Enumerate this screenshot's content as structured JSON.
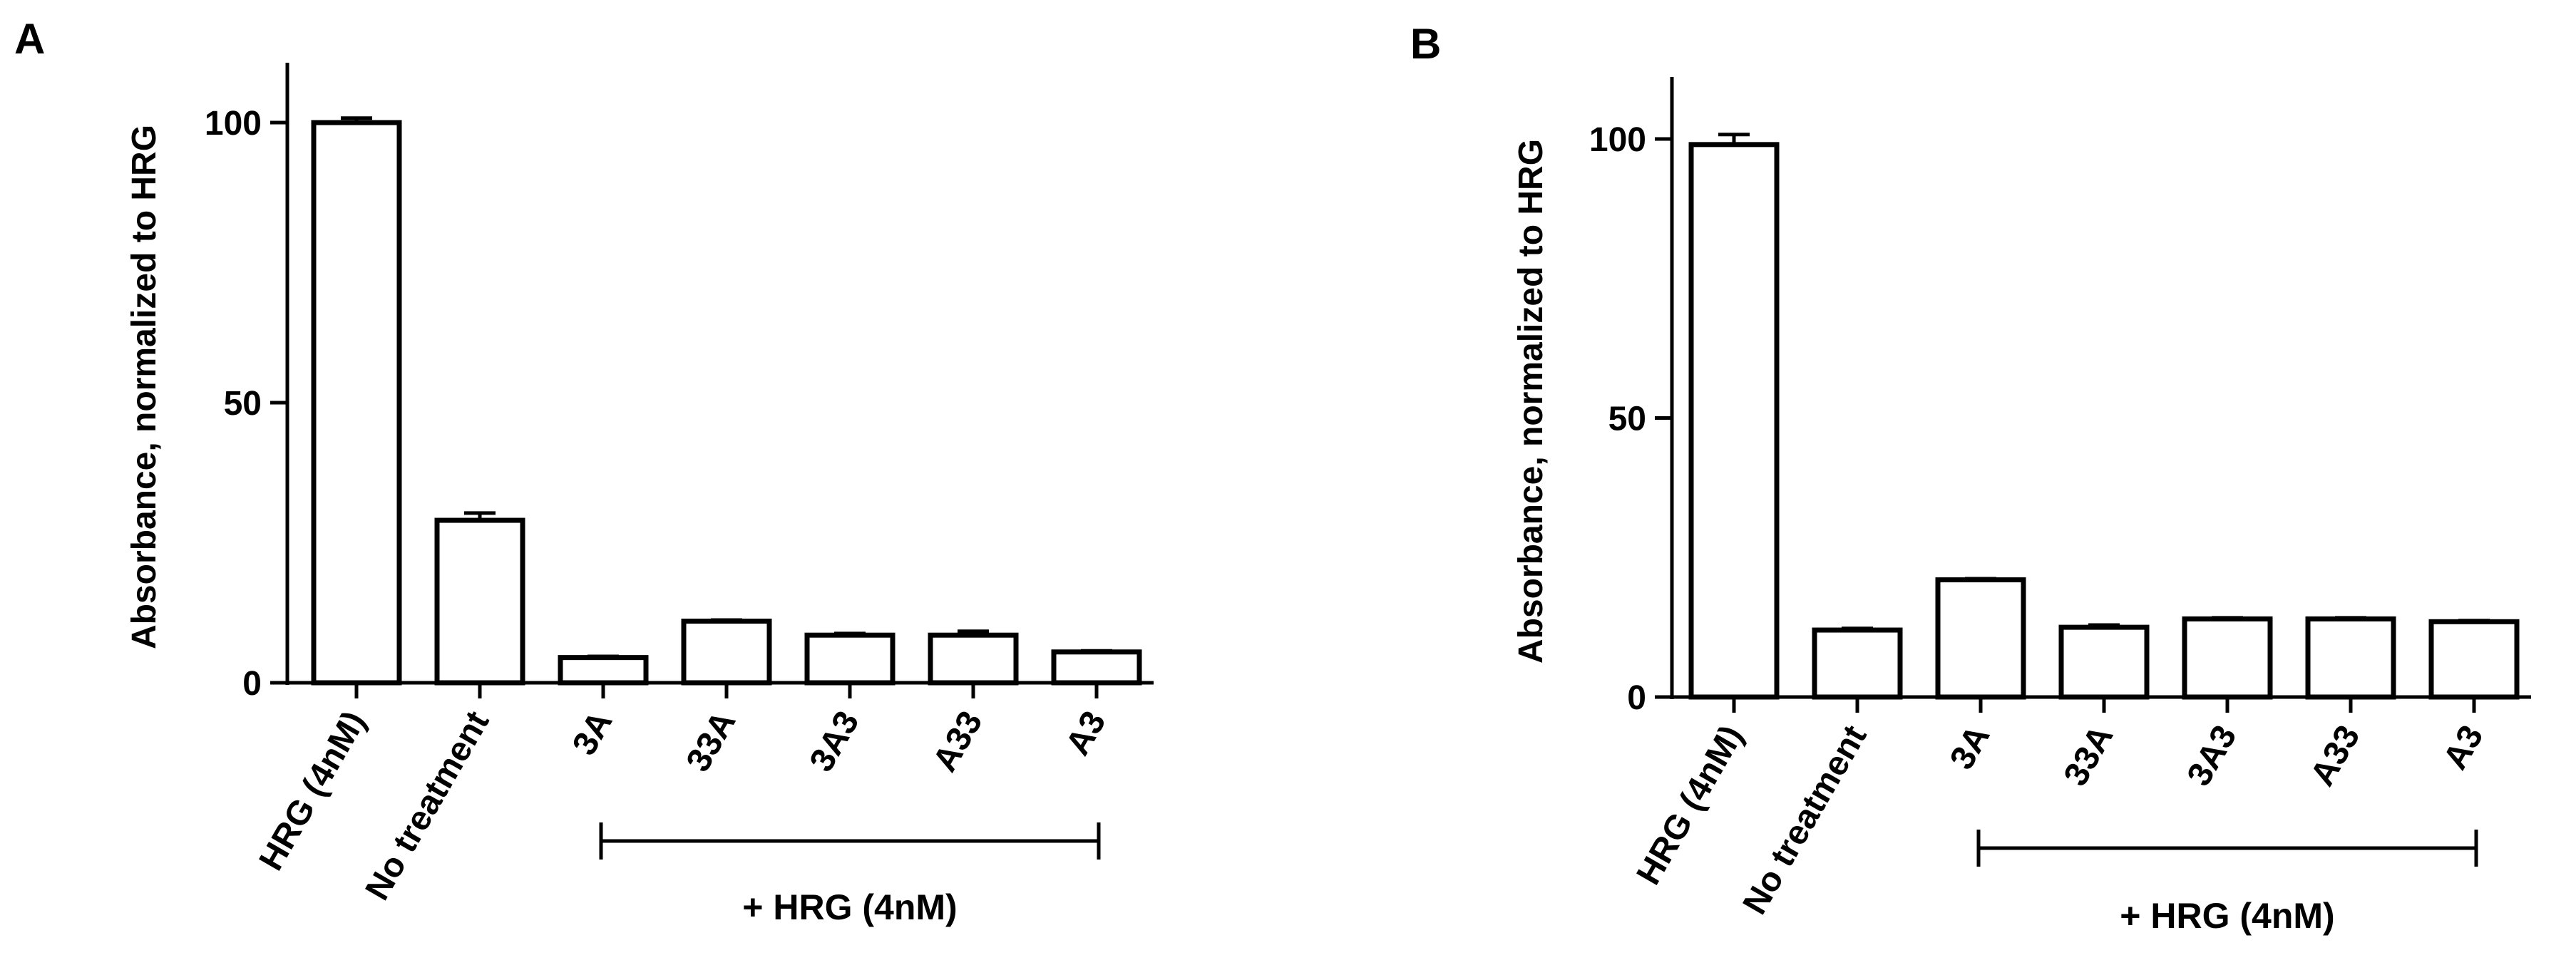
{
  "chart_data": [
    {
      "panel": "A",
      "type": "bar",
      "ylabel": "Absorbance, normalized to HRG",
      "ylim": [
        0,
        110
      ],
      "yticks": [
        0,
        50,
        100
      ],
      "categories": [
        "HRG (4nM)",
        "No treatment",
        "3A",
        "33A",
        "3A3",
        "A33",
        "A3"
      ],
      "values": [
        100,
        29,
        4.5,
        11,
        8.5,
        8.5,
        5.5
      ],
      "errors": [
        0.8,
        1.3,
        0.2,
        0.2,
        0.3,
        0.7,
        0.2
      ],
      "group": {
        "label": "+ HRG (4nM)",
        "from": 2,
        "to": 6
      }
    },
    {
      "panel": "B",
      "type": "bar",
      "ylabel": "Absorbance, normalized to HRG",
      "ylim": [
        0,
        110
      ],
      "yticks": [
        0,
        50,
        100
      ],
      "categories": [
        "HRG (4nM)",
        "No treatment",
        "3A",
        "33A",
        "3A3",
        "A33",
        "A3"
      ],
      "values": [
        99,
        12,
        21,
        12.5,
        14,
        14,
        13.5
      ],
      "errors": [
        1.8,
        0.3,
        0.2,
        0.4,
        0.2,
        0.2,
        0.2
      ],
      "group": {
        "label": "+ HRG (4nM)",
        "from": 2,
        "to": 6
      }
    }
  ]
}
